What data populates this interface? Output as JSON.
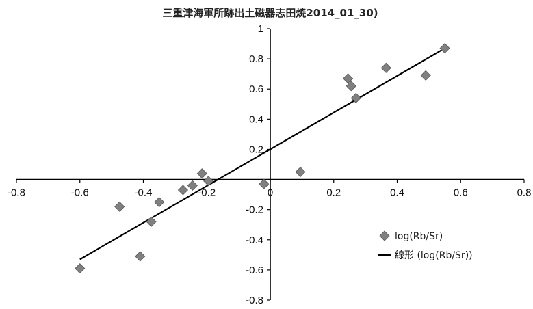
{
  "chart_data": {
    "type": "scatter",
    "title": "三重津海軍所跡出土磁器志田焼2014_01_30)",
    "xlim": [
      -0.8,
      0.8
    ],
    "ylim": [
      -0.8,
      1.0
    ],
    "x_ticks": [
      "-0.8",
      "-0.6",
      "-0.4",
      "-0.2",
      "0",
      "0.2",
      "0.4",
      "0.6",
      "0.8"
    ],
    "y_ticks": [
      "-0.8",
      "-0.6",
      "-0.4",
      "-0.2",
      "0",
      "0.2",
      "0.4",
      "0.6",
      "0.8",
      "1"
    ],
    "grid": false,
    "legend_position": "right",
    "series": [
      {
        "name": "log(Rb/Sr)",
        "marker": "diamond",
        "color": "#808080",
        "points": [
          {
            "x": -0.6,
            "y": -0.59
          },
          {
            "x": -0.475,
            "y": -0.18
          },
          {
            "x": -0.41,
            "y": -0.51
          },
          {
            "x": -0.375,
            "y": -0.28
          },
          {
            "x": -0.35,
            "y": -0.15
          },
          {
            "x": -0.275,
            "y": -0.07
          },
          {
            "x": -0.245,
            "y": -0.04
          },
          {
            "x": -0.215,
            "y": 0.04
          },
          {
            "x": -0.195,
            "y": -0.01
          },
          {
            "x": -0.02,
            "y": -0.03
          },
          {
            "x": 0.095,
            "y": 0.05
          },
          {
            "x": 0.245,
            "y": 0.67
          },
          {
            "x": 0.255,
            "y": 0.62
          },
          {
            "x": 0.27,
            "y": 0.54
          },
          {
            "x": 0.365,
            "y": 0.74
          },
          {
            "x": 0.49,
            "y": 0.69
          },
          {
            "x": 0.55,
            "y": 0.87
          }
        ]
      },
      {
        "name": "線形 (log(Rb/Sr))",
        "type": "line",
        "color": "#000000",
        "points": [
          {
            "x": -0.6,
            "y": -0.53
          },
          {
            "x": 0.55,
            "y": 0.87
          }
        ]
      }
    ]
  }
}
